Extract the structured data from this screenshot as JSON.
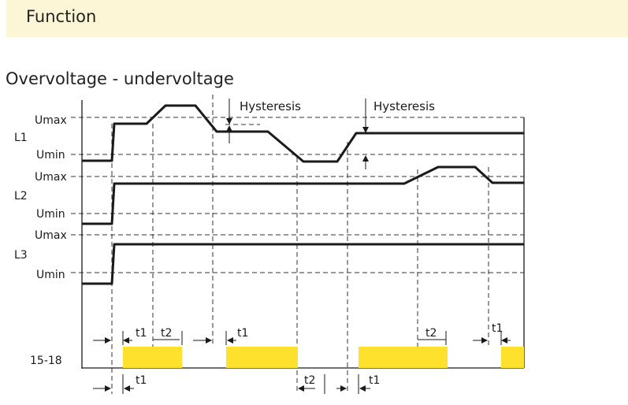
{
  "header": {
    "title": "Function"
  },
  "section": {
    "title": "Overvoltage - undervoltage"
  },
  "diagram": {
    "level_labels": {
      "l1_umax": "Umax",
      "l1_umin": "Umin",
      "l2_umax": "Umax",
      "l2_umin": "Umin",
      "l3_umax": "Umax",
      "l3_umin": "Umin"
    },
    "phase_labels": {
      "l1": "L1",
      "l2": "L2",
      "l3": "L3"
    },
    "output_label": "15-18",
    "hysteresis_labels": [
      "Hysteresis",
      "Hysteresis"
    ],
    "timing_labels": {
      "top_t1_a": "t1",
      "top_t2_a": "t2",
      "top_t1_b": "t1",
      "top_t2_b": "t2",
      "top_t1_c": "t1",
      "bottom_t1_a": "t1",
      "bottom_t2": "t2",
      "bottom_t1_b": "t1"
    },
    "colors": {
      "relay_on": "#fde12d",
      "line": "#1a1a1a",
      "dashed": "#333333"
    }
  }
}
